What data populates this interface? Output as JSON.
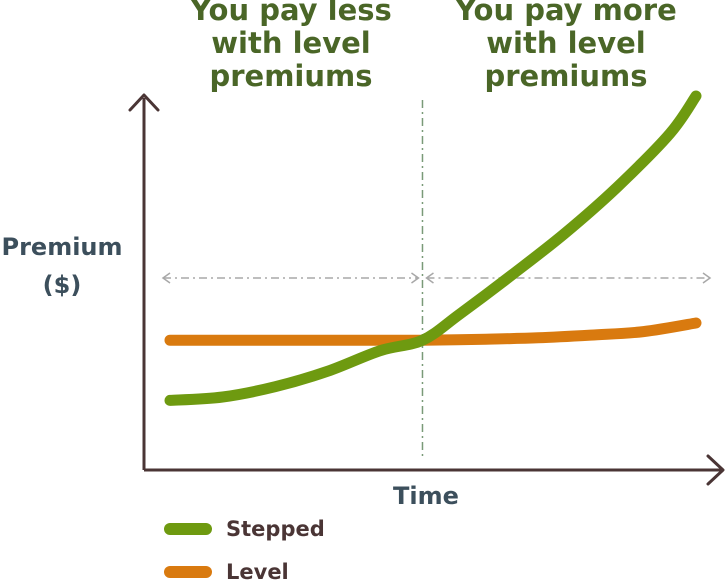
{
  "annotations": {
    "left": [
      "You pay less",
      "with level",
      "premiums"
    ],
    "right": [
      "You pay more",
      "with level",
      "premiums"
    ]
  },
  "chart_data": {
    "type": "line",
    "title": "",
    "xlabel": "Time",
    "ylabel": "Premium ($)",
    "ylabel_lines": [
      "Premium",
      "($)"
    ],
    "xlim": [
      0,
      10
    ],
    "ylim": [
      0,
      10
    ],
    "axis_ticks": false,
    "grid": false,
    "crossover_x": 4.8,
    "series": [
      {
        "name": "Stepped",
        "color": "#6e9a10",
        "x": [
          0,
          1,
          2,
          3,
          4,
          4.8,
          5.5,
          6.5,
          7.5,
          8.5,
          9.5,
          10
        ],
        "y": [
          1.15,
          1.25,
          1.55,
          2.0,
          2.6,
          2.9,
          3.65,
          4.8,
          6.0,
          7.35,
          8.9,
          10
        ]
      },
      {
        "name": "Level",
        "color": "#d97a0f",
        "x": [
          0,
          1,
          2,
          3,
          4,
          4.8,
          6,
          7,
          8,
          9,
          10
        ],
        "y": [
          2.9,
          2.9,
          2.9,
          2.9,
          2.9,
          2.9,
          2.93,
          2.97,
          3.05,
          3.15,
          3.4
        ]
      }
    ],
    "legend_position": "bottom-left"
  },
  "colors": {
    "axis": "#4a3535",
    "annotation_text": "#4a6627",
    "axis_label_text": "#3c4f5c",
    "guide_line_dash": "#7a9a78",
    "arrow_dash": "#a8a8a8"
  },
  "legend": {
    "items": [
      {
        "label": "Stepped",
        "color": "#6e9a10"
      },
      {
        "label": "Level",
        "color": "#d97a0f"
      }
    ]
  }
}
